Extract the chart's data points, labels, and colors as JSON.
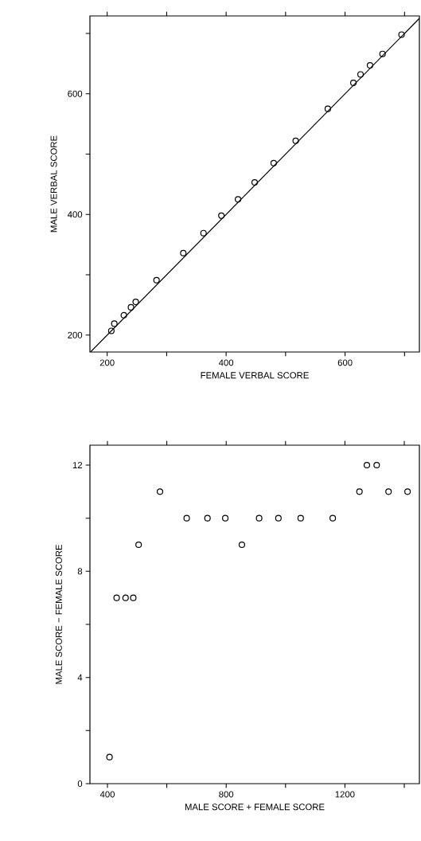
{
  "chart_data": [
    {
      "type": "scatter",
      "xlabel": "FEMALE VERBAL SCORE",
      "ylabel": "MALE VERBAL SCORE",
      "xlim": [
        171,
        725
      ],
      "ylim": [
        172,
        729
      ],
      "xticks": [
        200,
        {
          "value": 300,
          "label": null
        },
        400,
        {
          "value": 500,
          "label": null
        },
        600,
        {
          "value": 700,
          "label": null
        }
      ],
      "yticks": [
        200,
        {
          "value": 300,
          "label": null
        },
        400,
        {
          "value": 500,
          "label": null
        },
        600,
        {
          "value": 700,
          "label": null
        }
      ],
      "grid": false,
      "series": [
        {
          "marker": "circle",
          "color": "#000000",
          "x": [
            207,
            212,
            228,
            240,
            248,
            283,
            328,
            362,
            392,
            420,
            448,
            480,
            517,
            571,
            614,
            626,
            642,
            663,
            695
          ],
          "values": [
            207,
            219,
            233,
            246,
            255,
            291,
            336,
            369,
            398,
            425,
            453,
            485,
            522,
            575,
            618,
            632,
            647,
            666,
            698
          ]
        },
        {
          "type": "line",
          "color": "#000000",
          "x": [
            172,
            725
          ],
          "values": [
            172,
            725
          ]
        }
      ]
    },
    {
      "type": "scatter",
      "xlabel": "MALE SCORE + FEMALE SCORE",
      "ylabel": "MALE SCORE − FEMALE SCORE",
      "xlim": [
        341,
        1451
      ],
      "ylim": [
        0,
        12.75
      ],
      "xticks": [
        400,
        {
          "value": 600,
          "label": null
        },
        800,
        {
          "value": 1000,
          "label": null
        },
        1200,
        {
          "value": 1400,
          "label": null
        }
      ],
      "yticks": [
        0,
        {
          "value": 2,
          "label": null
        },
        4,
        {
          "value": 6,
          "label": null
        },
        8,
        {
          "value": 10,
          "label": null
        },
        12
      ],
      "marker": "circle",
      "grid": false,
      "series": [
        {
          "color": "#000000",
          "x": [
            407,
            431,
            461,
            487,
            505,
            577,
            667,
            737,
            797,
            853,
            911,
            976,
            1051,
            1159,
            1249,
            1274,
            1307,
            1347,
            1411
          ],
          "values": [
            1,
            7,
            7,
            7,
            9,
            11,
            10,
            10,
            10,
            9,
            10,
            10,
            10,
            10,
            11,
            12,
            12,
            11,
            11
          ]
        }
      ]
    }
  ]
}
